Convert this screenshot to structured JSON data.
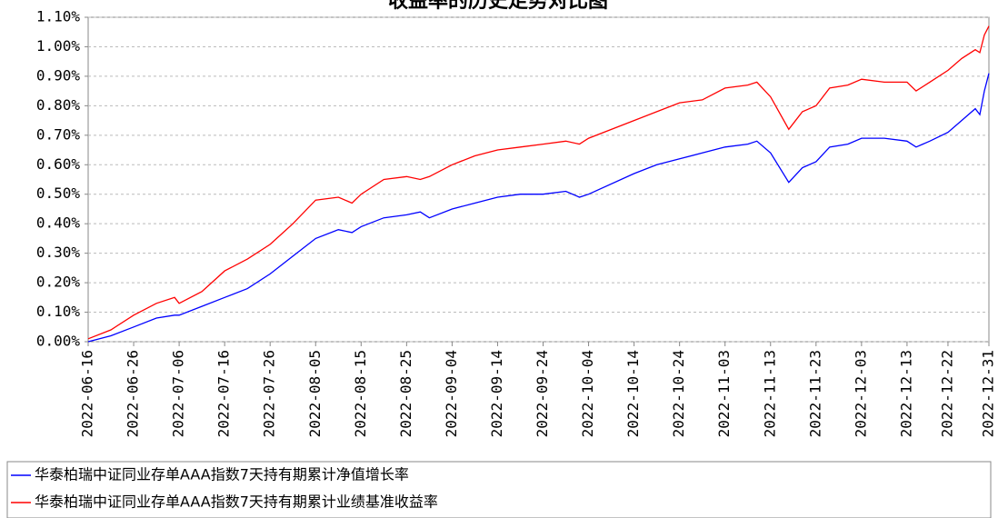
{
  "chart_data": {
    "type": "line",
    "title": "收益率的历史走势对比图",
    "x": [
      "2022-06-16",
      "2022-06-21",
      "2022-06-26",
      "2022-07-01",
      "2022-07-05",
      "2022-07-06",
      "2022-07-11",
      "2022-07-16",
      "2022-07-21",
      "2022-07-26",
      "2022-07-31",
      "2022-08-05",
      "2022-08-10",
      "2022-08-13",
      "2022-08-15",
      "2022-08-20",
      "2022-08-25",
      "2022-08-28",
      "2022-08-30",
      "2022-09-04",
      "2022-09-09",
      "2022-09-14",
      "2022-09-19",
      "2022-09-24",
      "2022-09-29",
      "2022-10-02",
      "2022-10-04",
      "2022-10-14",
      "2022-10-19",
      "2022-10-24",
      "2022-10-29",
      "2022-11-03",
      "2022-11-08",
      "2022-11-10",
      "2022-11-13",
      "2022-11-17",
      "2022-11-20",
      "2022-11-23",
      "2022-11-26",
      "2022-11-30",
      "2022-12-03",
      "2022-12-08",
      "2022-12-13",
      "2022-12-15",
      "2022-12-18",
      "2022-12-22",
      "2022-12-25",
      "2022-12-28",
      "2022-12-29",
      "2022-12-30",
      "2022-12-31"
    ],
    "series": [
      {
        "name": "华泰柏瑞中证同业存单AAA指数7天持有期累计净值增长率",
        "color": "#0000ff",
        "values": [
          0.0,
          0.02,
          0.05,
          0.08,
          0.09,
          0.09,
          0.12,
          0.15,
          0.18,
          0.23,
          0.29,
          0.35,
          0.38,
          0.37,
          0.39,
          0.42,
          0.43,
          0.44,
          0.42,
          0.45,
          0.47,
          0.49,
          0.5,
          0.5,
          0.51,
          0.49,
          0.5,
          0.57,
          0.6,
          0.62,
          0.64,
          0.66,
          0.67,
          0.68,
          0.64,
          0.54,
          0.59,
          0.61,
          0.66,
          0.67,
          0.69,
          0.69,
          0.68,
          0.66,
          0.68,
          0.71,
          0.75,
          0.79,
          0.77,
          0.85,
          0.91
        ]
      },
      {
        "name": "华泰柏瑞中证同业存单AAA指数7天持有期累计业绩基准收益率",
        "color": "#ff0000",
        "values": [
          0.01,
          0.04,
          0.09,
          0.13,
          0.15,
          0.13,
          0.17,
          0.24,
          0.28,
          0.33,
          0.4,
          0.48,
          0.49,
          0.47,
          0.5,
          0.55,
          0.56,
          0.55,
          0.56,
          0.6,
          0.63,
          0.65,
          0.66,
          0.67,
          0.68,
          0.67,
          0.69,
          0.75,
          0.78,
          0.81,
          0.82,
          0.86,
          0.87,
          0.88,
          0.83,
          0.72,
          0.78,
          0.8,
          0.86,
          0.87,
          0.89,
          0.88,
          0.88,
          0.85,
          0.88,
          0.92,
          0.96,
          0.99,
          0.98,
          1.04,
          1.07
        ]
      }
    ],
    "xlim": [
      "2022-06-16",
      "2022-12-31"
    ],
    "xticks": [
      "2022-06-16",
      "2022-06-26",
      "2022-07-06",
      "2022-07-16",
      "2022-07-26",
      "2022-08-05",
      "2022-08-15",
      "2022-08-25",
      "2022-09-04",
      "2022-09-14",
      "2022-09-24",
      "2022-10-04",
      "2022-10-14",
      "2022-10-24",
      "2022-11-03",
      "2022-11-13",
      "2022-11-23",
      "2022-12-03",
      "2022-12-13",
      "2022-12-22",
      "2022-12-31"
    ],
    "ylim": [
      0,
      1.1
    ],
    "yticks": [
      {
        "value": 0,
        "label": "0.00%"
      },
      {
        "value": 0.1,
        "label": "0.10%"
      },
      {
        "value": 0.2,
        "label": "0.20%"
      },
      {
        "value": 0.3,
        "label": "0.30%"
      },
      {
        "value": 0.4,
        "label": "0.40%"
      },
      {
        "value": 0.5,
        "label": "0.50%"
      },
      {
        "value": 0.6,
        "label": "0.60%"
      },
      {
        "value": 0.7,
        "label": "0.70%"
      },
      {
        "value": 0.8,
        "label": "0.80%"
      },
      {
        "value": 0.9,
        "label": "0.90%"
      },
      {
        "value": 1.0,
        "label": "1.00%"
      },
      {
        "value": 1.1,
        "label": "1.10%"
      }
    ],
    "grid": true,
    "legend": "bottom"
  }
}
